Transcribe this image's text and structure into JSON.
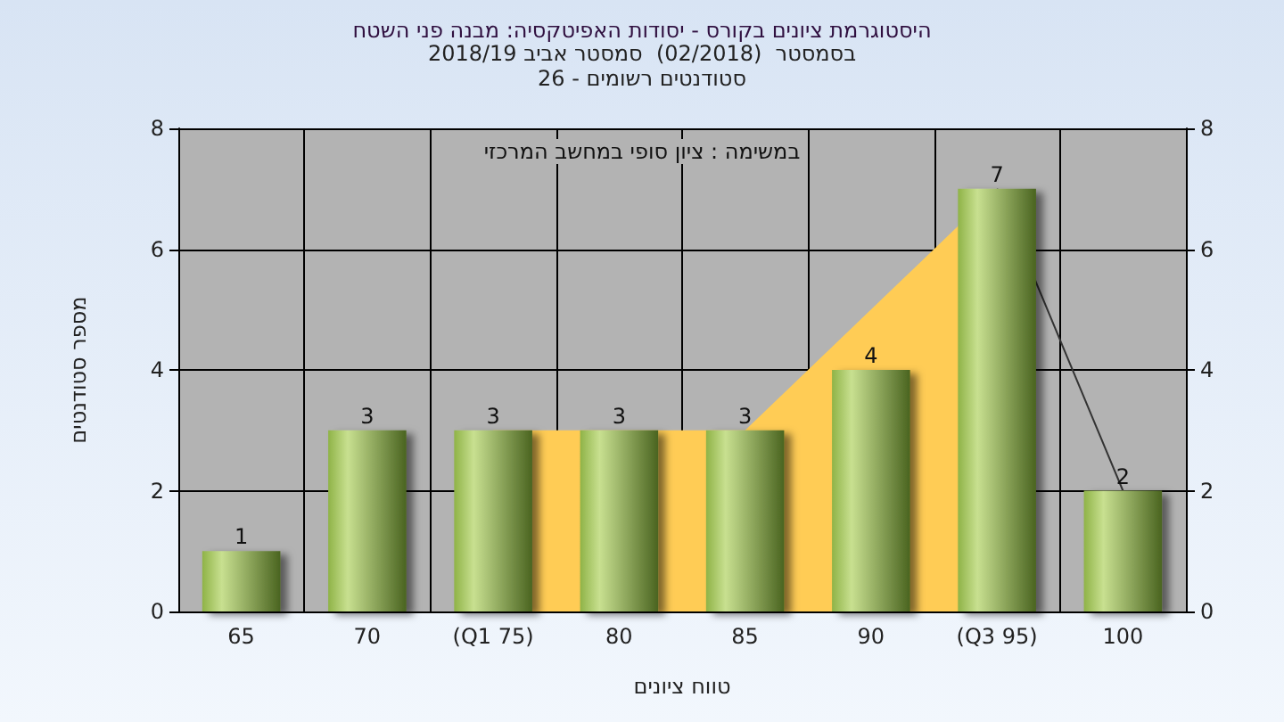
{
  "chart_data": {
    "type": "bar",
    "title": "היסטוגרמת ציונים בקורס - יסודות האפיטקסיה: מבנה פני השטח",
    "subtitle": "בסמסטר  (02/2018)  סמסטר אביב 2018/19\nסטודנטים רשומים - 26",
    "xlabel": "טווח ציונים",
    "ylabel": "מספר סטודנטים",
    "annotations": [
      "במשימה : ציון סופי במחשב המרכזי"
    ],
    "categories": [
      "65",
      "70",
      "(Q1 75)",
      "80",
      "85",
      "90",
      "(Q3 95)",
      "100"
    ],
    "series": [
      {
        "type": "area",
        "color": "#ffcc55",
        "values": [
          null,
          null,
          3,
          3,
          3,
          null,
          7,
          null
        ]
      },
      {
        "type": "line",
        "color": "#333333",
        "values": [
          null,
          null,
          null,
          null,
          null,
          null,
          7,
          2
        ]
      },
      {
        "color": "#8fb347",
        "values": [
          1,
          3,
          3,
          3,
          3,
          4,
          7,
          2
        ],
        "value_labels": [
          "1",
          "3",
          "3",
          "3",
          "3",
          "4",
          "7",
          "2"
        ]
      }
    ],
    "ylim": [
      0,
      8
    ],
    "yticks": [
      0,
      2,
      4,
      6,
      8
    ],
    "y2lim": [
      0,
      8
    ],
    "y2ticks": [
      0,
      2,
      4,
      6,
      8
    ],
    "grid": true
  }
}
